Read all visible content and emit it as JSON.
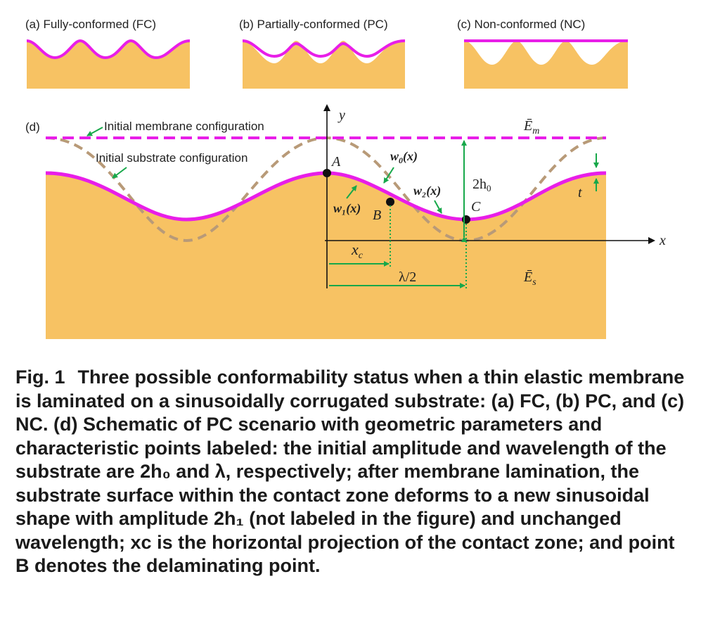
{
  "panels": {
    "a": "(a) Fully-conformed (FC)",
    "b": "(b) Partially-conformed (PC)",
    "c": "(c) Non-conformed (NC)",
    "d": "(d)"
  },
  "annotations": {
    "membrane_initial": "Initial membrane configuration",
    "substrate_initial": "Initial substrate configuration",
    "axis_y": "y",
    "axis_x": "x",
    "E_m": "Ē",
    "E_m_sub": "m",
    "E_s": "Ē",
    "E_s_sub": "s",
    "point_A": "A",
    "point_B": "B",
    "point_C": "C",
    "w0": "w",
    "w0_sub": "0",
    "w0_arg": "(x)",
    "w1": "w₁(x)",
    "w2": "w₂(x)",
    "two_h0": "2h",
    "two_h0_sub": "0",
    "t": "t",
    "xc": "x",
    "xc_sub": "c",
    "lambda_half": "λ/2"
  },
  "caption": {
    "label": "Fig. 1",
    "text": "Three possible conformability status when a thin elastic membrane is laminated on a sinusoidally corrugated substrate: (a) FC, (b) PC, and (c) NC. (d) Schematic of PC scenario with geometric parameters and characteristic points labeled: the initial amplitude and wavelength of the substrate are 2h₀ and λ, respectively; after membrane lamination, the substrate surface within the contact zone deforms to a new sinusoidal shape with amplitude 2h₁ (not labeled in the figure) and unchanged wavelength; xc is the horizontal projection of the contact zone; and point B denotes the delaminating point."
  },
  "colors": {
    "substrate": "#f7c263",
    "membrane": "#e81ee8",
    "initial_substrate": "#b89a78",
    "annotation": "#17a84a",
    "axis": "#111111"
  }
}
